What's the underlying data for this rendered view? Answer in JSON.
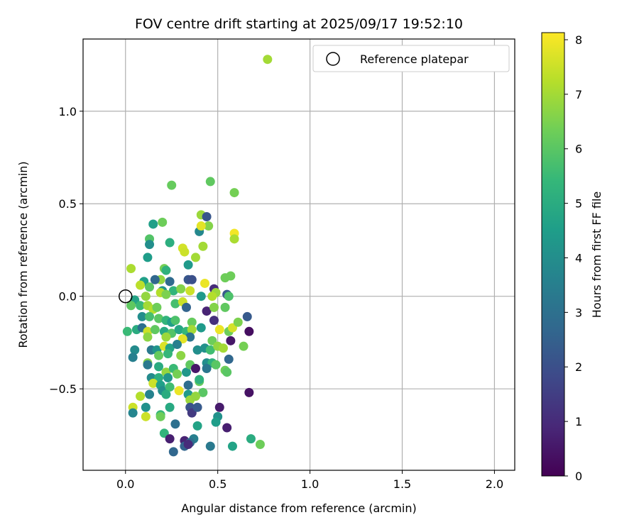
{
  "chart_data": {
    "type": "scatter",
    "title": "FOV centre drift starting at 2025/09/17 19:52:10",
    "xlabel": "Angular distance from reference (arcmin)",
    "ylabel": "Rotation from reference (arcmin)",
    "xlim": [
      -0.23,
      2.11
    ],
    "ylim": [
      -0.94,
      1.39
    ],
    "xticks": [
      0.0,
      0.5,
      1.0,
      1.5,
      2.0
    ],
    "xtick_labels": [
      "0.0",
      "0.5",
      "1.0",
      "1.5",
      "2.0"
    ],
    "yticks": [
      -0.5,
      0.0,
      0.5,
      1.0
    ],
    "ytick_labels": [
      "−0.5",
      "0.0",
      "0.5",
      "1.0"
    ],
    "grid": true,
    "legend": {
      "placement": "top-right",
      "label": "Reference platepar"
    },
    "reference_point": {
      "x": 0.0,
      "y": 0.0
    },
    "colorbar": {
      "label": "Hours from first FF file",
      "range": [
        0,
        8.13
      ],
      "ticks": [
        0,
        1,
        2,
        3,
        4,
        5,
        6,
        7,
        8
      ],
      "tick_labels": [
        "0",
        "1",
        "2",
        "3",
        "4",
        "5",
        "6",
        "7",
        "8"
      ],
      "colormap": "viridis",
      "colors": [
        "#440154",
        "#482878",
        "#3e4989",
        "#31688e",
        "#26828e",
        "#1f9e89",
        "#35b779",
        "#6ece58",
        "#b5de2b",
        "#fde725"
      ]
    },
    "series": [
      {
        "name": "FOV centre",
        "points": [
          [
            0.77,
            1.28,
            7.0
          ],
          [
            0.46,
            0.62,
            6.1
          ],
          [
            0.25,
            0.6,
            6.2
          ],
          [
            0.59,
            0.56,
            6.4
          ],
          [
            0.41,
            0.44,
            6.9
          ],
          [
            0.44,
            0.43,
            2.2
          ],
          [
            0.15,
            0.39,
            4.6
          ],
          [
            0.2,
            0.4,
            6.3
          ],
          [
            0.45,
            0.38,
            6.6
          ],
          [
            0.4,
            0.35,
            3.8
          ],
          [
            0.41,
            0.38,
            7.8
          ],
          [
            0.59,
            0.34,
            8.0
          ],
          [
            0.59,
            0.31,
            7.1
          ],
          [
            0.13,
            0.31,
            5.9
          ],
          [
            0.13,
            0.28,
            4.0
          ],
          [
            0.24,
            0.29,
            5.1
          ],
          [
            0.31,
            0.26,
            7.6
          ],
          [
            0.42,
            0.27,
            7.0
          ],
          [
            0.32,
            0.24,
            7.5
          ],
          [
            0.12,
            0.21,
            4.5
          ],
          [
            0.38,
            0.21,
            7.0
          ],
          [
            0.34,
            0.17,
            4.4
          ],
          [
            0.03,
            0.15,
            7.1
          ],
          [
            0.21,
            0.15,
            6.4
          ],
          [
            0.22,
            0.14,
            5.2
          ],
          [
            0.57,
            0.11,
            6.3
          ],
          [
            0.54,
            0.1,
            6.3
          ],
          [
            0.19,
            0.09,
            6.8
          ],
          [
            0.1,
            0.08,
            4.6
          ],
          [
            0.16,
            0.09,
            2.7
          ],
          [
            0.24,
            0.08,
            2.8
          ],
          [
            0.34,
            0.09,
            2.2
          ],
          [
            0.36,
            0.09,
            2.0
          ],
          [
            0.43,
            0.07,
            7.9
          ],
          [
            0.08,
            0.06,
            7.3
          ],
          [
            0.13,
            0.05,
            6.0
          ],
          [
            0.2,
            0.03,
            4.2
          ],
          [
            0.26,
            0.03,
            5.3
          ],
          [
            0.3,
            0.04,
            6.6
          ],
          [
            0.35,
            0.03,
            7.5
          ],
          [
            0.48,
            0.04,
            1.0
          ],
          [
            0.49,
            0.02,
            6.9
          ],
          [
            0.55,
            0.01,
            2.3
          ],
          [
            0.56,
            0.0,
            5.8
          ],
          [
            0.11,
            0.0,
            6.8
          ],
          [
            0.19,
            0.02,
            7.2
          ],
          [
            0.22,
            0.01,
            6.5
          ],
          [
            0.41,
            0.0,
            4.4
          ],
          [
            0.47,
            0.0,
            7.2
          ],
          [
            0.05,
            -0.02,
            4.7
          ],
          [
            0.03,
            -0.05,
            6.1
          ],
          [
            0.08,
            -0.05,
            5.5
          ],
          [
            0.12,
            -0.05,
            7.0
          ],
          [
            0.15,
            -0.07,
            7.2
          ],
          [
            0.17,
            -0.06,
            6.3
          ],
          [
            0.27,
            -0.04,
            5.7
          ],
          [
            0.31,
            -0.03,
            7.5
          ],
          [
            0.33,
            -0.06,
            2.6
          ],
          [
            0.44,
            -0.08,
            0.8
          ],
          [
            0.48,
            -0.06,
            6.6
          ],
          [
            0.54,
            -0.06,
            6.1
          ],
          [
            0.09,
            -0.11,
            4.0
          ],
          [
            0.13,
            -0.11,
            5.7
          ],
          [
            0.18,
            -0.12,
            6.0
          ],
          [
            0.22,
            -0.13,
            5.3
          ],
          [
            0.25,
            -0.14,
            4.5
          ],
          [
            0.27,
            -0.13,
            5.8
          ],
          [
            0.36,
            -0.14,
            6.2
          ],
          [
            0.48,
            -0.13,
            1.1
          ],
          [
            0.66,
            -0.11,
            2.3
          ],
          [
            0.01,
            -0.19,
            5.5
          ],
          [
            0.06,
            -0.18,
            5.0
          ],
          [
            0.09,
            -0.17,
            3.0
          ],
          [
            0.12,
            -0.19,
            7.5
          ],
          [
            0.16,
            -0.18,
            6.1
          ],
          [
            0.21,
            -0.19,
            4.9
          ],
          [
            0.25,
            -0.2,
            5.9
          ],
          [
            0.29,
            -0.18,
            4.8
          ],
          [
            0.33,
            -0.19,
            5.4
          ],
          [
            0.36,
            -0.18,
            7.0
          ],
          [
            0.41,
            -0.17,
            4.4
          ],
          [
            0.51,
            -0.18,
            7.9
          ],
          [
            0.56,
            -0.19,
            6.3
          ],
          [
            0.58,
            -0.17,
            7.6
          ],
          [
            0.61,
            -0.14,
            6.5
          ],
          [
            0.67,
            -0.19,
            0.3
          ],
          [
            0.12,
            -0.22,
            6.7
          ],
          [
            0.22,
            -0.22,
            6.9
          ],
          [
            0.35,
            -0.22,
            3.1
          ],
          [
            0.31,
            -0.23,
            7.8
          ],
          [
            0.47,
            -0.24,
            6.3
          ],
          [
            0.57,
            -0.24,
            0.5
          ],
          [
            0.05,
            -0.29,
            3.9
          ],
          [
            0.14,
            -0.29,
            3.3
          ],
          [
            0.17,
            -0.29,
            4.2
          ],
          [
            0.21,
            -0.27,
            7.7
          ],
          [
            0.24,
            -0.28,
            4.7
          ],
          [
            0.28,
            -0.26,
            3.5
          ],
          [
            0.39,
            -0.29,
            4.0
          ],
          [
            0.43,
            -0.28,
            4.1
          ],
          [
            0.46,
            -0.29,
            5.6
          ],
          [
            0.5,
            -0.27,
            6.8
          ],
          [
            0.53,
            -0.28,
            7.0
          ],
          [
            0.64,
            -0.27,
            6.4
          ],
          [
            0.04,
            -0.33,
            3.5
          ],
          [
            0.18,
            -0.32,
            6.2
          ],
          [
            0.23,
            -0.31,
            5.4
          ],
          [
            0.3,
            -0.32,
            6.7
          ],
          [
            0.44,
            -0.36,
            4.0
          ],
          [
            0.47,
            -0.36,
            5.2
          ],
          [
            0.49,
            -0.37,
            6.0
          ],
          [
            0.56,
            -0.34,
            2.7
          ],
          [
            0.12,
            -0.36,
            6.6
          ],
          [
            0.12,
            -0.37,
            3.3
          ],
          [
            0.18,
            -0.38,
            5.0
          ],
          [
            0.22,
            -0.41,
            6.8
          ],
          [
            0.26,
            -0.39,
            5.5
          ],
          [
            0.28,
            -0.42,
            6.4
          ],
          [
            0.33,
            -0.41,
            4.3
          ],
          [
            0.35,
            -0.37,
            6.1
          ],
          [
            0.38,
            -0.39,
            0.5
          ],
          [
            0.44,
            -0.39,
            3.2
          ],
          [
            0.54,
            -0.4,
            6.3
          ],
          [
            0.55,
            -0.41,
            6.0
          ],
          [
            0.14,
            -0.44,
            3.9
          ],
          [
            0.18,
            -0.44,
            5.1
          ],
          [
            0.23,
            -0.44,
            4.3
          ],
          [
            0.15,
            -0.47,
            7.5
          ],
          [
            0.19,
            -0.48,
            4.6
          ],
          [
            0.2,
            -0.51,
            4.0
          ],
          [
            0.24,
            -0.49,
            5.6
          ],
          [
            0.29,
            -0.51,
            7.9
          ],
          [
            0.34,
            -0.48,
            2.9
          ],
          [
            0.4,
            -0.46,
            6.2
          ],
          [
            0.4,
            -0.45,
            5.2
          ],
          [
            0.42,
            -0.52,
            6.0
          ],
          [
            0.08,
            -0.54,
            7.2
          ],
          [
            0.13,
            -0.53,
            3.6
          ],
          [
            0.22,
            -0.53,
            5.0
          ],
          [
            0.34,
            -0.53,
            4.4
          ],
          [
            0.35,
            -0.56,
            6.9
          ],
          [
            0.38,
            -0.54,
            6.8
          ],
          [
            0.67,
            -0.52,
            0.4
          ],
          [
            0.04,
            -0.6,
            7.5
          ],
          [
            0.04,
            -0.63,
            3.7
          ],
          [
            0.11,
            -0.6,
            4.1
          ],
          [
            0.19,
            -0.64,
            5.4
          ],
          [
            0.24,
            -0.6,
            4.9
          ],
          [
            0.35,
            -0.6,
            2.1
          ],
          [
            0.36,
            -0.63,
            1.4
          ],
          [
            0.39,
            -0.6,
            2.3
          ],
          [
            0.51,
            -0.6,
            0.6
          ],
          [
            0.11,
            -0.65,
            7.5
          ],
          [
            0.19,
            -0.65,
            6.3
          ],
          [
            0.5,
            -0.65,
            4.1
          ],
          [
            0.49,
            -0.68,
            4.5
          ],
          [
            0.27,
            -0.69,
            3.0
          ],
          [
            0.39,
            -0.7,
            4.7
          ],
          [
            0.21,
            -0.74,
            5.3
          ],
          [
            0.55,
            -0.71,
            0.7
          ],
          [
            0.24,
            -0.77,
            0.7
          ],
          [
            0.32,
            -0.78,
            0.8
          ],
          [
            0.37,
            -0.77,
            3.5
          ],
          [
            0.32,
            -0.81,
            2.6
          ],
          [
            0.35,
            -0.79,
            2.9
          ],
          [
            0.26,
            -0.84,
            2.7
          ],
          [
            0.46,
            -0.81,
            3.3
          ],
          [
            0.58,
            -0.81,
            4.7
          ],
          [
            0.68,
            -0.77,
            5.0
          ],
          [
            0.73,
            -0.8,
            6.3
          ],
          [
            0.34,
            -0.8,
            1.0
          ]
        ]
      }
    ]
  }
}
